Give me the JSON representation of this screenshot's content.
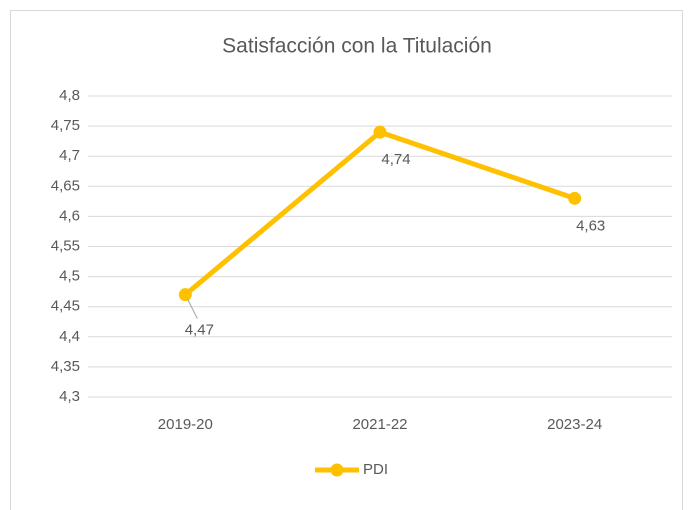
{
  "chart_data": {
    "type": "line",
    "title": "Satisfacción con la Titulación",
    "categories": [
      "2019-20",
      "2021-22",
      "2023-24"
    ],
    "series": [
      {
        "name": "PDI",
        "color": "#ffc000",
        "values": [
          4.47,
          4.74,
          4.63
        ],
        "value_labels": [
          "4,47",
          "4,74",
          "4,63"
        ]
      }
    ],
    "ylim": [
      4.3,
      4.8
    ],
    "yticks": [
      {
        "value": 4.3,
        "label": "4,3"
      },
      {
        "value": 4.35,
        "label": "4,35"
      },
      {
        "value": 4.4,
        "label": "4,4"
      },
      {
        "value": 4.45,
        "label": "4,45"
      },
      {
        "value": 4.5,
        "label": "4,5"
      },
      {
        "value": 4.55,
        "label": "4,55"
      },
      {
        "value": 4.6,
        "label": "4,6"
      },
      {
        "value": 4.65,
        "label": "4,65"
      },
      {
        "value": 4.7,
        "label": "4,7"
      },
      {
        "value": 4.75,
        "label": "4,75"
      },
      {
        "value": 4.8,
        "label": "4,8"
      }
    ],
    "grid": true,
    "legend": "bottom"
  }
}
